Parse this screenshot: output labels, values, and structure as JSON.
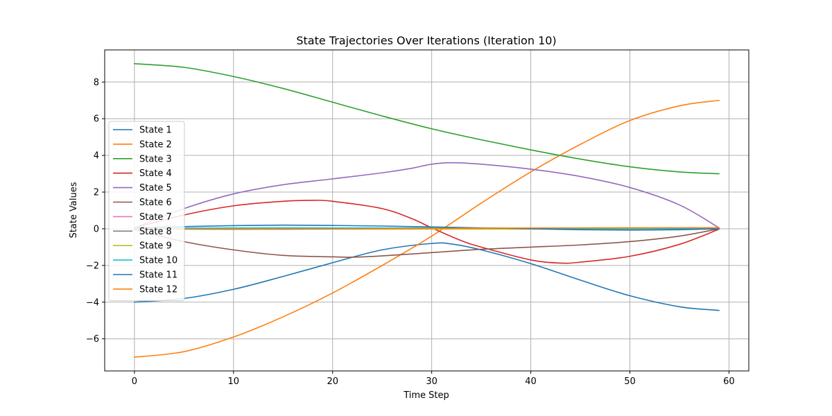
{
  "chart_data": {
    "type": "line",
    "title": "State Trajectories Over Iterations (Iteration 10)",
    "xlabel": "Time Step",
    "ylabel": "State Values",
    "xlim": [
      -3,
      62
    ],
    "ylim": [
      -7.75,
      9.75
    ],
    "xticks": [
      0,
      10,
      20,
      30,
      40,
      50,
      60
    ],
    "yticks": [
      -6,
      -4,
      -2,
      0,
      2,
      4,
      6,
      8
    ],
    "grid": true,
    "legend_position": "center-left",
    "series": [
      {
        "name": "State 1",
        "color": "#1f77b4",
        "x": [
          0,
          5,
          10,
          15,
          20,
          25,
          30,
          32,
          35,
          40,
          45,
          50,
          55,
          59
        ],
        "y": [
          -4.0,
          -3.8,
          -3.3,
          -2.6,
          -1.85,
          -1.15,
          -0.8,
          -0.83,
          -1.15,
          -1.9,
          -2.8,
          -3.65,
          -4.25,
          -4.45
        ]
      },
      {
        "name": "State 2",
        "color": "#ff7f0e",
        "x": [
          0,
          5,
          10,
          15,
          20,
          25,
          30,
          35,
          40,
          45,
          50,
          55,
          59
        ],
        "y": [
          -7.0,
          -6.7,
          -5.9,
          -4.8,
          -3.5,
          -2.0,
          -0.4,
          1.4,
          3.1,
          4.6,
          5.9,
          6.7,
          7.0
        ]
      },
      {
        "name": "State 3",
        "color": "#2ca02c",
        "x": [
          0,
          5,
          10,
          15,
          20,
          25,
          30,
          35,
          40,
          45,
          50,
          55,
          59
        ],
        "y": [
          9.0,
          8.8,
          8.3,
          7.65,
          6.9,
          6.15,
          5.45,
          4.85,
          4.3,
          3.8,
          3.38,
          3.1,
          3.0
        ]
      },
      {
        "name": "State 4",
        "color": "#d62728",
        "x": [
          0,
          5,
          10,
          15,
          18,
          20,
          25,
          28,
          30,
          33,
          35,
          40,
          43,
          45,
          50,
          55,
          59
        ],
        "y": [
          0.05,
          0.75,
          1.25,
          1.5,
          1.55,
          1.5,
          1.1,
          0.55,
          0.05,
          -0.65,
          -1.0,
          -1.7,
          -1.87,
          -1.82,
          -1.5,
          -0.85,
          -0.02
        ]
      },
      {
        "name": "State 5",
        "color": "#9467bd",
        "x": [
          0,
          5,
          10,
          15,
          20,
          25,
          28,
          30,
          32,
          35,
          40,
          45,
          50,
          55,
          59
        ],
        "y": [
          0.05,
          1.1,
          1.9,
          2.4,
          2.72,
          3.05,
          3.3,
          3.52,
          3.6,
          3.52,
          3.25,
          2.85,
          2.25,
          1.3,
          0.05
        ]
      },
      {
        "name": "State 6",
        "color": "#8c564b",
        "x": [
          0,
          5,
          10,
          15,
          20,
          22,
          25,
          30,
          35,
          40,
          45,
          50,
          55,
          59
        ],
        "y": [
          -0.05,
          -0.7,
          -1.15,
          -1.45,
          -1.53,
          -1.55,
          -1.48,
          -1.3,
          -1.12,
          -1.0,
          -0.88,
          -0.7,
          -0.4,
          0.0
        ]
      },
      {
        "name": "State 7",
        "color": "#e377c2",
        "x": [
          0,
          15,
          30,
          45,
          59
        ],
        "y": [
          0.0,
          0.01,
          0.01,
          0.01,
          0.0
        ]
      },
      {
        "name": "State 8",
        "color": "#7f7f7f",
        "x": [
          0,
          15,
          30,
          45,
          59
        ],
        "y": [
          0.0,
          0.0,
          0.0,
          0.0,
          0.0
        ]
      },
      {
        "name": "State 9",
        "color": "#bcbd22",
        "x": [
          0,
          15,
          30,
          45,
          59
        ],
        "y": [
          0.0,
          -0.02,
          -0.02,
          -0.01,
          0.0
        ]
      },
      {
        "name": "State 10",
        "color": "#17becf",
        "x": [
          0,
          15,
          30,
          45,
          59
        ],
        "y": [
          0.02,
          0.05,
          0.04,
          0.02,
          0.0
        ]
      },
      {
        "name": "State 11",
        "color": "#1f77b4",
        "x": [
          0,
          5,
          10,
          15,
          20,
          25,
          30,
          35,
          40,
          45,
          50,
          55,
          59
        ],
        "y": [
          0.05,
          0.12,
          0.17,
          0.2,
          0.18,
          0.15,
          0.1,
          0.05,
          0.0,
          -0.05,
          -0.07,
          -0.05,
          0.0
        ]
      },
      {
        "name": "State 12",
        "color": "#ff7f0e",
        "x": [
          0,
          15,
          30,
          45,
          59
        ],
        "y": [
          -0.02,
          -0.03,
          0.02,
          0.05,
          0.06
        ]
      }
    ]
  }
}
